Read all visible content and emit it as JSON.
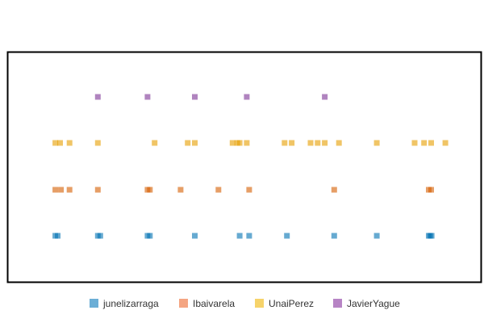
{
  "chart_data": {
    "type": "scatter",
    "title": "",
    "xlabel": "",
    "ylabel": "",
    "x_axis_visible": false,
    "y_axis_visible": false,
    "grid": false,
    "frame": true,
    "x_range": [
      0,
      100
    ],
    "legend_placement": "bottom",
    "series": [
      {
        "name": "junelizarraga",
        "color": "#0072b2",
        "x": [
          10,
          10.5,
          19,
          19.5,
          29.5,
          30,
          39.5,
          49,
          51,
          59,
          69,
          78,
          89,
          89.3,
          89.6
        ]
      },
      {
        "name": "Ibaivarela",
        "color": "#d55e00",
        "x": [
          10,
          11.2,
          13,
          19,
          29.5,
          30,
          36.5,
          44.5,
          51,
          69,
          89,
          89.5
        ]
      },
      {
        "name": "UnaiPerez",
        "color": "#e69f00",
        "x": [
          10,
          11,
          13,
          19,
          31,
          38,
          39.5,
          47.5,
          48.5,
          49,
          50.5,
          58.5,
          60,
          64,
          65.5,
          67,
          70,
          78,
          86,
          88,
          89.5,
          92.5
        ]
      },
      {
        "name": "JavierYague",
        "color": "#7b3294",
        "x": [
          19,
          29.5,
          39.5,
          50.5,
          67
        ]
      }
    ]
  },
  "legend": {
    "items": [
      {
        "label": "junelizarraga",
        "color": "#6baed6"
      },
      {
        "label": "Ibaivarela",
        "color": "#f4a582"
      },
      {
        "label": "UnaiPerez",
        "color": "#f6d36a"
      },
      {
        "label": "JavierYague",
        "color": "#b784c5"
      }
    ]
  }
}
